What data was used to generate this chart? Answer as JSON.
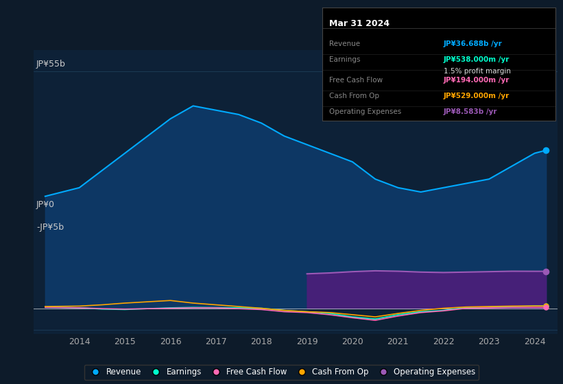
{
  "bg_color": "#0d1b2a",
  "chart_bg": "#0d2137",
  "years": [
    2013.25,
    2014,
    2014.5,
    2015,
    2015.5,
    2016,
    2016.5,
    2017,
    2017.5,
    2018,
    2018.5,
    2019,
    2019.5,
    2020,
    2020.5,
    2021,
    2021.5,
    2022,
    2022.5,
    2023,
    2023.5,
    2024,
    2024.25
  ],
  "revenue": [
    26,
    28,
    32,
    36,
    40,
    44,
    47,
    46,
    45,
    43,
    40,
    38,
    36,
    34,
    30,
    28,
    27,
    28,
    29,
    30,
    33,
    36,
    36.688
  ],
  "earnings": [
    0.3,
    0.1,
    -0.2,
    -0.3,
    -0.1,
    0.1,
    0.2,
    0.15,
    0.1,
    0.0,
    -0.5,
    -0.8,
    -1.2,
    -2.0,
    -2.5,
    -1.5,
    -0.8,
    -0.5,
    0.2,
    0.3,
    0.4,
    0.538,
    0.538
  ],
  "free_cash_flow": [
    0.2,
    0.1,
    -0.1,
    -0.2,
    -0.1,
    0.0,
    0.1,
    0.1,
    -0.1,
    -0.3,
    -0.8,
    -1.0,
    -1.5,
    -2.2,
    -2.8,
    -1.8,
    -1.0,
    -0.6,
    0.0,
    0.1,
    0.2,
    0.194,
    0.194
  ],
  "cash_from_op": [
    0.4,
    0.5,
    0.8,
    1.2,
    1.5,
    1.8,
    1.2,
    0.8,
    0.4,
    0.0,
    -0.5,
    -0.8,
    -1.0,
    -1.5,
    -2.0,
    -1.2,
    -0.5,
    0.0,
    0.3,
    0.4,
    0.5,
    0.529,
    0.529
  ],
  "op_expenses_x": [
    2019,
    2019.5,
    2020,
    2020.5,
    2021,
    2021.5,
    2022,
    2022.5,
    2023,
    2023.5,
    2024,
    2024.25
  ],
  "op_expenses_y": [
    8.0,
    8.2,
    8.5,
    8.7,
    8.6,
    8.4,
    8.3,
    8.4,
    8.5,
    8.6,
    8.583,
    8.583
  ],
  "revenue_color": "#00aaff",
  "earnings_color": "#00ffcc",
  "free_cash_flow_color": "#ff69b4",
  "cash_from_op_color": "#ffa500",
  "op_expenses_color": "#9b59b6",
  "op_expenses_fill_color": "#4a1f7a",
  "revenue_fill_color": "#0d3a6a",
  "xlim": [
    2013.0,
    2024.5
  ],
  "ylim": [
    -6,
    60
  ],
  "y_label_top": "JP¥55b",
  "y_label_zero": "JP¥0",
  "y_label_neg": "-JP¥5b",
  "top_y": 55,
  "neg_y": -5,
  "x_ticks": [
    2014,
    2015,
    2016,
    2017,
    2018,
    2019,
    2020,
    2021,
    2022,
    2023,
    2024
  ],
  "tooltip_title": "Mar 31 2024",
  "tooltip_data": [
    {
      "label": "Revenue",
      "value": "JP¥36.688b /yr",
      "color": "#00aaff"
    },
    {
      "label": "Earnings",
      "value": "JP¥538.000m /yr",
      "color": "#00ffcc"
    },
    {
      "label": "",
      "value": "1.5% profit margin",
      "color": "#dddddd"
    },
    {
      "label": "Free Cash Flow",
      "value": "JP¥194.000m /yr",
      "color": "#ff69b4"
    },
    {
      "label": "Cash From Op",
      "value": "JP¥529.000m /yr",
      "color": "#ffa500"
    },
    {
      "label": "Operating Expenses",
      "value": "JP¥8.583b /yr",
      "color": "#9b59b6"
    }
  ],
  "legend_items": [
    {
      "label": "Revenue",
      "color": "#00aaff"
    },
    {
      "label": "Earnings",
      "color": "#00ffcc"
    },
    {
      "label": "Free Cash Flow",
      "color": "#ff69b4"
    },
    {
      "label": "Cash From Op",
      "color": "#ffa500"
    },
    {
      "label": "Operating Expenses",
      "color": "#9b59b6"
    }
  ]
}
